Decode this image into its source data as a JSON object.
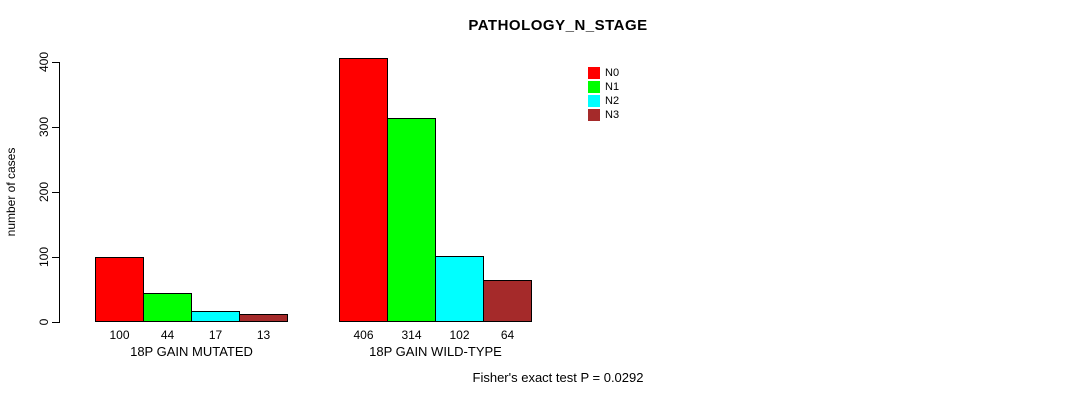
{
  "chart": {
    "title": "PATHOLOGY_N_STAGE",
    "ylabel": "number of cases",
    "footer": "Fisher's exact test P = 0.0292"
  },
  "chart_data": {
    "type": "bar",
    "title": "PATHOLOGY_N_STAGE",
    "xlabel": "",
    "ylabel": "number of cases",
    "categories": [
      "18P GAIN MUTATED",
      "18P GAIN WILD-TYPE"
    ],
    "series": [
      {
        "name": "N0",
        "color": "#ff0000",
        "values": [
          100,
          406
        ]
      },
      {
        "name": "N1",
        "color": "#00ff00",
        "values": [
          44,
          314
        ]
      },
      {
        "name": "N2",
        "color": "#00ffff",
        "values": [
          17,
          102
        ]
      },
      {
        "name": "N3",
        "color": "#a52a2a",
        "values": [
          13,
          64
        ]
      }
    ],
    "bar_value_labels": [
      [
        100,
        44,
        17,
        13
      ],
      [
        406,
        314,
        102,
        64
      ]
    ],
    "ylim": [
      0,
      400
    ],
    "yticks": [
      0,
      100,
      200,
      300,
      400
    ],
    "grid": false,
    "legend_position": "top-right",
    "annotation": "Fisher's exact test P = 0.0292"
  }
}
